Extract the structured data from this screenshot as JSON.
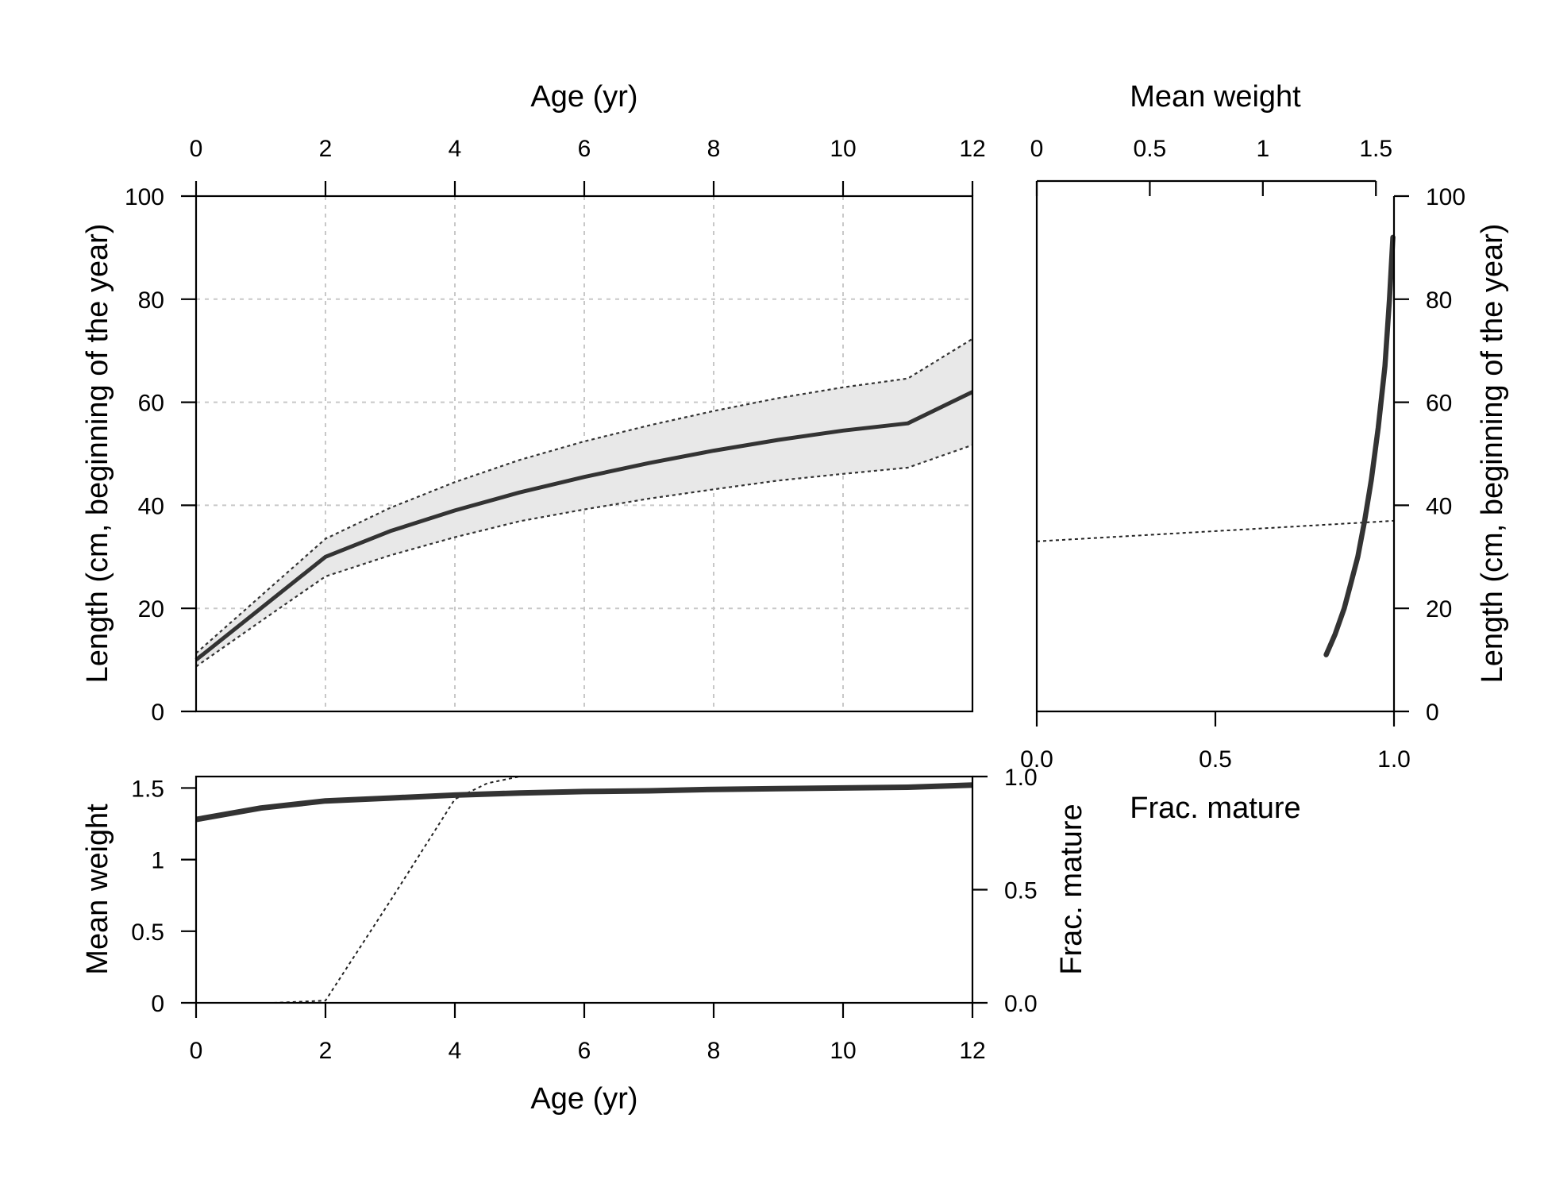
{
  "chart_data": [
    {
      "type": "line",
      "panel": "length-at-age",
      "xlabel": "Age (yr)",
      "ylabel": "Length (cm, beginning of the year)",
      "x_axis_side": "top",
      "xlim": [
        0,
        12
      ],
      "ylim": [
        0,
        100
      ],
      "xticks": [
        "0",
        "2",
        "4",
        "6",
        "8",
        "10",
        "12"
      ],
      "yticks": [
        "0",
        "20",
        "40",
        "60",
        "80",
        "100"
      ],
      "grid": true,
      "x": [
        0,
        1,
        2,
        3,
        4,
        5,
        6,
        7,
        8,
        9,
        10,
        11,
        12
      ],
      "series": [
        {
          "role": "mean",
          "line": "solid",
          "values": [
            10,
            20,
            30,
            35,
            39,
            42.5,
            45.5,
            48.2,
            50.6,
            52.7,
            54.5,
            55.9,
            62
          ]
        },
        {
          "role": "upper",
          "line": "dotted",
          "values": [
            11.3,
            22.4,
            33.5,
            39.5,
            44.5,
            48.8,
            52.4,
            55.5,
            58.3,
            60.8,
            62.9,
            64.6,
            72.3
          ]
        },
        {
          "role": "lower",
          "line": "dotted",
          "values": [
            8.7,
            17.5,
            26.2,
            30.3,
            33.8,
            36.9,
            39.2,
            41.3,
            43.1,
            44.8,
            46.1,
            47.3,
            51.7
          ]
        }
      ],
      "band_color": "#e8e8e8",
      "line_color": "#333333"
    },
    {
      "type": "line",
      "panel": "weight-maturity-at-length",
      "x_top_label": "Mean weight",
      "x_top_ticks": [
        "0",
        "0.5",
        "1",
        "1.5"
      ],
      "x_top_lim": [
        0,
        1.58
      ],
      "x_bottom_label": "Frac. mature",
      "x_bottom_ticks": [
        "0.0",
        "0.5",
        "1.0"
      ],
      "x_bottom_lim": [
        0,
        1
      ],
      "ylabel": "Length (cm, beginning of the year)",
      "ylim": [
        0,
        100
      ],
      "yticks": [
        "0",
        "20",
        "40",
        "60",
        "80",
        "100"
      ],
      "grid": false,
      "series": [
        {
          "role": "mean-weight",
          "line": "solid",
          "x": [
            1.28,
            1.3,
            1.32,
            1.36,
            1.39,
            1.42,
            1.45,
            1.48,
            1.51,
            1.54,
            1.56,
            1.575
          ],
          "y": [
            11,
            13,
            15,
            20,
            25,
            30,
            37,
            45,
            55,
            67,
            80,
            92
          ]
        },
        {
          "role": "frac-mature",
          "line": "dotted",
          "x": [
            0,
            0.5,
            1.0
          ],
          "y": [
            33,
            35,
            37
          ]
        }
      ]
    },
    {
      "type": "line",
      "panel": "weight-maturity-at-age",
      "xlabel": "Age (yr)",
      "ylabel": "Mean weight",
      "y2label": "Frac. mature",
      "xlim": [
        0,
        12
      ],
      "ylim": [
        0,
        1.58
      ],
      "y2lim": [
        0,
        1
      ],
      "xticks": [
        "0",
        "2",
        "4",
        "6",
        "8",
        "10",
        "12"
      ],
      "yticks": [
        "0",
        "0.5",
        "1",
        "1.5"
      ],
      "y2ticks": [
        "0.0",
        "0.5",
        "1.0"
      ],
      "grid": false,
      "x": [
        0,
        1,
        2,
        3,
        4,
        5,
        6,
        7,
        8,
        9,
        10,
        11,
        12
      ],
      "series": [
        {
          "role": "mean-weight",
          "line": "solid",
          "values": [
            1.28,
            1.36,
            1.41,
            1.43,
            1.45,
            1.465,
            1.475,
            1.48,
            1.49,
            1.495,
            1.5,
            1.505,
            1.52
          ]
        },
        {
          "role": "frac-mature",
          "line": "dotted",
          "x": [
            1.2,
            2.0,
            3.0,
            4.0,
            4.5,
            5.0,
            6.5
          ],
          "values": [
            0,
            0.01,
            0.45,
            0.9,
            0.97,
            1.0,
            1.0
          ]
        }
      ]
    }
  ]
}
